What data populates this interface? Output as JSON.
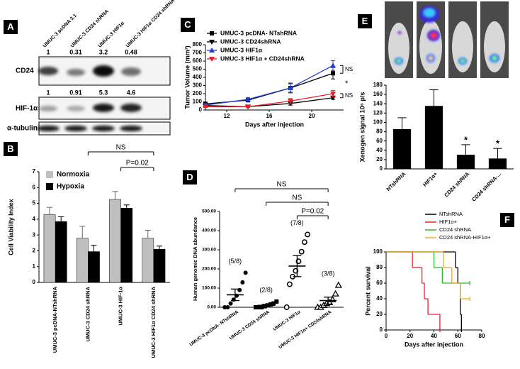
{
  "blot": {
    "panel": "A",
    "lanes": [
      "UMUC-3 pcDNA 3.1",
      "UMUC-3 CD24 shRNA",
      "UMUC-3 HIF1α",
      "UMUC-3 HIF1α CD24 shRNA"
    ],
    "rows": [
      {
        "label": "CD24",
        "quant": [
          1,
          0.31,
          3.2,
          0.48
        ]
      },
      {
        "label": "HIF-1α",
        "quant": [
          1,
          0.91,
          5.3,
          4.6
        ]
      },
      {
        "label": "α-tubulin"
      }
    ]
  },
  "chart_data": [
    {
      "panel": "B",
      "type": "bar",
      "ylabel": "Cell Viability Index",
      "categories": [
        "UMUC-3 pcDNA-NTshRNA",
        "UMUC-3 CD24 shRNA",
        "UMUC-3 HIF-1α",
        "UMUC-3 HIF1α CD24 shRNA"
      ],
      "series": [
        {
          "name": "Normoxia",
          "color": "#bfbfbf",
          "values": [
            4.3,
            2.8,
            5.25,
            2.8
          ],
          "errors": [
            0.45,
            0.75,
            0.5,
            0.5
          ]
        },
        {
          "name": "Hypoxia",
          "color": "#000000",
          "values": [
            3.85,
            1.95,
            4.7,
            2.1
          ],
          "errors": [
            0.3,
            0.4,
            0.2,
            0.2
          ]
        }
      ],
      "ylim": [
        0,
        7
      ],
      "yticks": [
        0,
        1,
        2,
        3,
        4,
        5,
        6,
        7
      ],
      "legend": "upper left",
      "annotations": [
        "NS",
        "P=0.02"
      ]
    },
    {
      "panel": "C",
      "type": "line",
      "xlabel": "Days after injection",
      "ylabel": "Tumor Volume (mm³)",
      "x": [
        10,
        14,
        18,
        22
      ],
      "series": [
        {
          "name": "UMUC-3 pcDNA- NTshRNA",
          "color": "#000000",
          "marker": "square",
          "values": [
            75,
            120,
            270,
            450
          ],
          "errors": [
            20,
            15,
            60,
            70
          ]
        },
        {
          "name": "UMUC-3 CD24shRNA",
          "color": "#000000",
          "marker": "triangle-down",
          "values": [
            55,
            40,
            80,
            150
          ],
          "errors": [
            10,
            8,
            20,
            20
          ]
        },
        {
          "name": "UMUC-3 HIF1α",
          "color": "#1f3fd0",
          "marker": "triangle-up",
          "values": [
            60,
            130,
            270,
            545
          ],
          "errors": [
            20,
            20,
            50,
            60
          ]
        },
        {
          "name": "UMUC-3 HIF1α + CD24shRNA",
          "color": "#e8202a",
          "marker": "triangle-down",
          "values": [
            40,
            40,
            110,
            200
          ],
          "errors": [
            10,
            8,
            30,
            40
          ]
        }
      ],
      "xlim": [
        10,
        23
      ],
      "xticks": [
        12,
        16,
        20
      ],
      "ylim": [
        0,
        800
      ],
      "yticks": [
        0,
        100,
        200,
        300,
        400,
        500,
        600,
        700,
        800
      ],
      "legend": "upper left",
      "annotations": [
        "NS",
        "*",
        "NS"
      ]
    },
    {
      "panel": "D",
      "type": "dotplot",
      "ylabel": "Human genomic DNA abundance",
      "categories": [
        "UMUC-3 pcDNA- NTshRNA",
        "UMUC-3 CD24 shRNA",
        "UMUC-3 HIF1α",
        "UMUC-3 HIF1α+ CD24shRNA"
      ],
      "points": [
        [
          0,
          0,
          20,
          40,
          60,
          90,
          130,
          180
        ],
        [
          0,
          0,
          0,
          5,
          10,
          15,
          20,
          30
        ],
        [
          0,
          120,
          160,
          190,
          240,
          290,
          340,
          380
        ],
        [
          0,
          0,
          10,
          20,
          25,
          40,
          70,
          115
        ]
      ],
      "means": [
        65,
        10,
        215,
        35
      ],
      "errors": [
        30,
        5,
        55,
        18
      ],
      "markers": [
        "circle",
        "square",
        "open-circle",
        "open-triangle"
      ],
      "fractions": [
        "(5/8)",
        "(2/8)",
        "(7/8)",
        "(3/8)"
      ],
      "ylim": [
        0,
        500
      ],
      "yticks": [
        {
          "value": 0,
          "label": "0.00"
        },
        {
          "value": 100,
          "label": "100.00"
        },
        {
          "value": 200,
          "label": "200.00"
        },
        {
          "value": 300,
          "label": "300.00"
        },
        {
          "value": 400,
          "label": "400.00"
        },
        {
          "value": 500,
          "label": "500.00"
        }
      ],
      "annotations": [
        "NS",
        "NS",
        "P=0.02"
      ]
    },
    {
      "panel": "E",
      "type": "bar",
      "ylabel": "Xenogen signal 10⁶ p/s",
      "categories": [
        "NTshRNA",
        "HIF1α+",
        "CD24 shRNA",
        "CD24 shRNA-..."
      ],
      "series": [
        {
          "color": "#000000",
          "values": [
            85,
            135,
            30,
            22
          ],
          "errors": [
            25,
            35,
            22,
            22
          ]
        }
      ],
      "ylim": [
        0,
        180
      ],
      "yticks": [
        0,
        20,
        40,
        60,
        80,
        100,
        120,
        140,
        160,
        180
      ],
      "annotations": [
        "*",
        "*"
      ]
    },
    {
      "panel": "F",
      "type": "step",
      "xlabel": "Days after injection",
      "ylabel": "Percent survival",
      "series": [
        {
          "name": "NTshRNA",
          "color": "#000000",
          "x": [
            0,
            58,
            60,
            62,
            63
          ],
          "values": [
            100,
            80,
            60,
            20,
            0
          ]
        },
        {
          "name": "HIF1α+",
          "color": "#e8202a",
          "x": [
            0,
            22,
            30,
            32,
            35,
            45
          ],
          "values": [
            100,
            80,
            60,
            40,
            20,
            0
          ]
        },
        {
          "name": "CD24 shRNA",
          "color": "#2eb82e",
          "x": [
            0,
            40,
            47,
            70
          ],
          "values": [
            100,
            80,
            60,
            60
          ]
        },
        {
          "name": "CD24 shRNA-HIF1α+",
          "color": "#f5a623",
          "x": [
            0,
            48,
            55,
            62,
            70
          ],
          "values": [
            100,
            80,
            60,
            40,
            40
          ]
        }
      ],
      "xlim": [
        0,
        80
      ],
      "xticks": [
        0,
        20,
        40,
        60,
        80
      ],
      "ylim": [
        0,
        100
      ],
      "yticks": [
        0,
        20,
        40,
        60,
        80,
        100
      ],
      "legend": "upper right"
    }
  ]
}
